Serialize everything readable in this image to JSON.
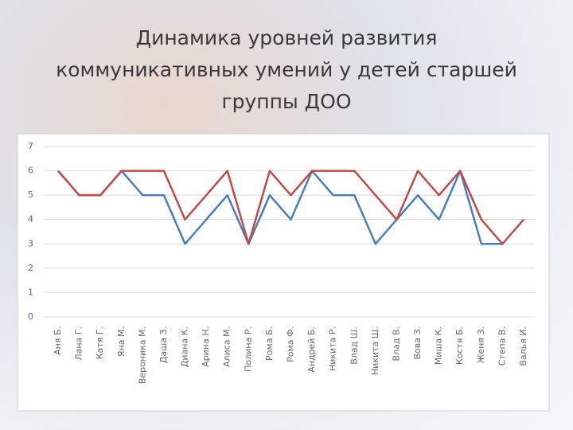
{
  "chart_data": {
    "type": "line",
    "title": "Динамика уровней развития\nкоммуникативных умений у детей старшей\nгруппы ДОО",
    "categories": [
      "Аня Б.",
      "Лана Г.",
      "Катя Г.",
      "Яна М.",
      "Вероника М.",
      "Даша З.",
      "Диана К.",
      "Арина Н.",
      "Алиса М.",
      "Полина Р.",
      "Рома Б.",
      "Рома Ф.",
      "Андрей Б.",
      "Никита Р.",
      "Влад Ш.",
      "Никита Ш.",
      "Влад В.",
      "Вова З.",
      "Миша К.",
      "Костя Б.",
      "Женя З.",
      "Степа В.",
      "Валья И."
    ],
    "series": [
      {
        "color": "#4a7ebb",
        "values": [
          6,
          5,
          5,
          6,
          5,
          5,
          3,
          4,
          5,
          3,
          5,
          4,
          6,
          5,
          5,
          3,
          4,
          5,
          4,
          6,
          3,
          3,
          null
        ]
      },
      {
        "color": "#be4b48",
        "values": [
          6,
          5,
          5,
          6,
          6,
          6,
          4,
          5,
          6,
          3,
          6,
          5,
          6,
          6,
          6,
          5,
          4,
          6,
          5,
          6,
          4,
          3,
          4
        ]
      }
    ],
    "ylim": [
      0,
      7
    ],
    "yticks": [
      0,
      1,
      2,
      3,
      4,
      5,
      6,
      7
    ],
    "grid": true
  }
}
